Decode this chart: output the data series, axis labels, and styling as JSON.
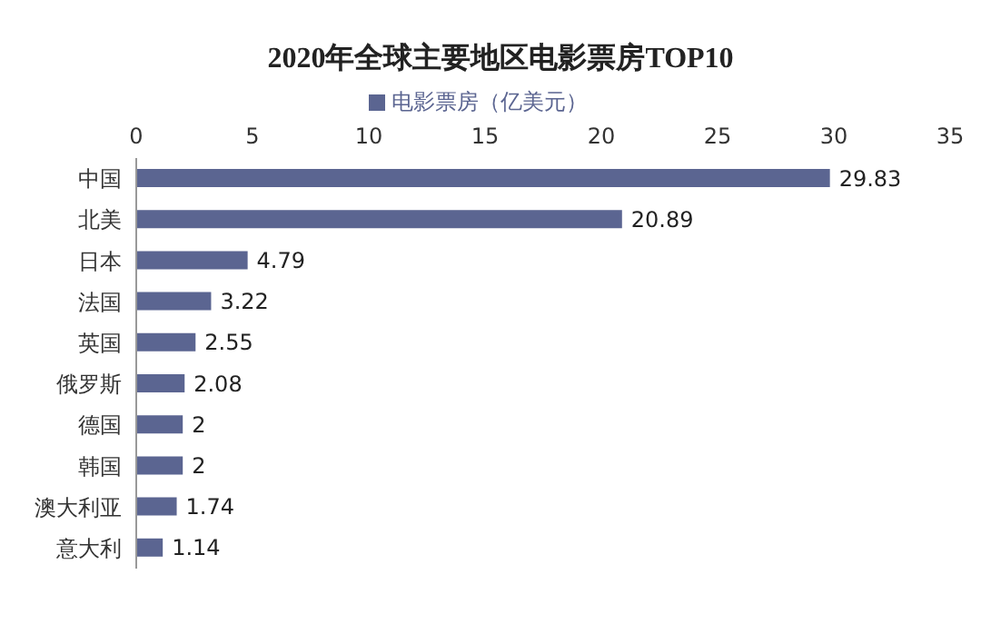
{
  "chart_data": {
    "type": "bar",
    "orientation": "horizontal",
    "title": "2020年全球主要地区电影票房TOP10",
    "categories": [
      "中国",
      "北美",
      "日本",
      "法国",
      "英国",
      "俄罗斯",
      "德国",
      "韩国",
      "澳大利亚",
      "意大利"
    ],
    "series": [
      {
        "name": "电影票房（亿美元）",
        "color": "#5b6591",
        "values": [
          29.83,
          20.89,
          4.79,
          3.22,
          2.55,
          2.08,
          2,
          2,
          1.74,
          1.14
        ]
      }
    ],
    "xlim": [
      0,
      35
    ],
    "xticks": [
      0,
      5,
      10,
      15,
      20,
      25,
      30,
      35
    ],
    "legend": "top",
    "data_labels": true,
    "grid": false
  }
}
